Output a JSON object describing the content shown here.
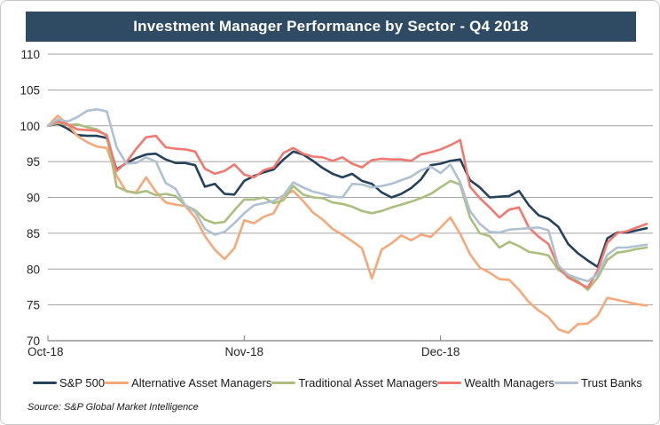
{
  "title": "Investment Manager Performance by Sector - Q4 2018",
  "source": "Source: S&P Global Market Intelligence",
  "colors": {
    "title_bar": "#2E4B63",
    "grid": "#a3a3a3",
    "axis": "#7f7f7f",
    "text": "#262626"
  },
  "chart_data": {
    "type": "line",
    "title": "Investment Manager Performance by Sector - Q4 2018",
    "xlabel": "",
    "ylabel": "",
    "ylim": [
      70,
      110
    ],
    "y_step": 5,
    "grid": true,
    "legend_position": "bottom",
    "num_points": 62,
    "x_tick_labels": [
      "Oct-18",
      "Nov-18",
      "Dec-18"
    ],
    "x_tick_indices": [
      0,
      20,
      40
    ],
    "series": [
      {
        "name": "S&P 500",
        "color": "#24425C",
        "values": [
          100.0,
          100.3,
          99.6,
          98.7,
          98.6,
          98.6,
          98.3,
          93.9,
          94.8,
          95.5,
          96.0,
          96.1,
          95.3,
          94.8,
          94.8,
          94.5,
          91.5,
          91.9,
          90.5,
          90.4,
          92.3,
          93.0,
          93.5,
          93.9,
          95.3,
          96.4,
          96.0,
          95.1,
          94.1,
          93.3,
          92.8,
          93.3,
          92.3,
          91.9,
          90.7,
          90.0,
          90.5,
          91.3,
          92.5,
          94.5,
          94.7,
          95.1,
          95.3,
          92.4,
          91.4,
          90.0,
          90.1,
          90.2,
          90.9,
          88.9,
          87.5,
          87.0,
          85.9,
          83.5,
          82.2,
          81.2,
          80.3,
          84.3,
          85.1,
          85.1,
          85.4,
          85.7
        ]
      },
      {
        "name": "Alternative Asset Managers",
        "color": "#F5A878",
        "values": [
          100.0,
          101.4,
          100.2,
          98.6,
          97.7,
          97.1,
          96.9,
          93.0,
          90.8,
          90.7,
          92.8,
          90.8,
          89.3,
          89.0,
          88.8,
          87.2,
          84.6,
          82.7,
          81.4,
          82.9,
          86.8,
          86.4,
          87.3,
          87.8,
          90.3,
          90.9,
          89.5,
          87.9,
          86.9,
          85.6,
          84.8,
          83.9,
          82.9,
          78.7,
          82.7,
          83.6,
          84.7,
          84.0,
          84.8,
          84.5,
          85.8,
          87.2,
          84.9,
          82.1,
          80.2,
          79.5,
          78.6,
          78.5,
          77.1,
          75.4,
          74.2,
          73.3,
          71.6,
          71.1,
          72.3,
          72.4,
          73.5,
          76.0,
          75.7,
          75.4,
          75.1,
          74.9
        ]
      },
      {
        "name": "Traditional Asset Managers",
        "color": "#ACBE7D",
        "values": [
          100.0,
          100.4,
          100.1,
          100.2,
          99.8,
          99.5,
          98.6,
          91.5,
          90.9,
          90.6,
          90.9,
          90.3,
          90.5,
          90.2,
          88.9,
          88.2,
          86.9,
          86.4,
          86.6,
          88.2,
          89.7,
          89.7,
          90.0,
          89.2,
          89.6,
          91.6,
          90.4,
          90.0,
          89.9,
          89.3,
          89.1,
          88.7,
          88.1,
          87.8,
          88.1,
          88.6,
          89.0,
          89.4,
          89.9,
          90.5,
          91.4,
          92.3,
          91.8,
          87.2,
          85.0,
          84.6,
          83.0,
          83.8,
          83.2,
          82.4,
          82.2,
          81.9,
          79.9,
          79.0,
          78.3,
          77.1,
          78.8,
          81.3,
          82.3,
          82.5,
          82.8,
          83.0
        ]
      },
      {
        "name": "Wealth Managers",
        "color": "#F0796F",
        "values": [
          100.0,
          100.6,
          100.2,
          99.5,
          99.4,
          99.3,
          98.7,
          93.7,
          94.9,
          96.8,
          98.4,
          98.6,
          97.0,
          96.8,
          96.7,
          96.4,
          94.0,
          93.3,
          93.7,
          94.6,
          93.2,
          92.8,
          93.8,
          94.2,
          96.2,
          96.9,
          96.1,
          95.7,
          95.6,
          95.1,
          95.6,
          94.7,
          94.2,
          95.2,
          95.4,
          95.3,
          95.3,
          95.1,
          96.0,
          96.3,
          96.7,
          97.3,
          98.0,
          91.5,
          89.9,
          88.6,
          87.2,
          88.3,
          88.6,
          85.8,
          84.5,
          83.5,
          80.3,
          78.8,
          78.1,
          77.4,
          79.8,
          83.7,
          85.0,
          85.3,
          85.8,
          86.3
        ]
      },
      {
        "name": "Trust Banks",
        "color": "#AEC1D3",
        "values": [
          100.0,
          100.9,
          100.6,
          101.2,
          102.1,
          102.3,
          102.0,
          97.0,
          94.7,
          94.8,
          95.6,
          95.0,
          92.0,
          91.2,
          88.9,
          88.0,
          85.6,
          84.8,
          85.2,
          86.4,
          87.8,
          88.9,
          89.2,
          89.5,
          90.3,
          92.1,
          91.4,
          90.8,
          90.5,
          90.1,
          90.0,
          91.9,
          91.8,
          91.4,
          91.6,
          91.9,
          92.4,
          92.9,
          93.8,
          94.3,
          93.4,
          94.6,
          92.1,
          88.1,
          86.3,
          85.2,
          85.1,
          85.5,
          85.6,
          85.7,
          85.8,
          85.4,
          80.5,
          79.2,
          78.7,
          78.3,
          79.3,
          82.0,
          83.0,
          83.0,
          83.2,
          83.4
        ]
      }
    ]
  }
}
